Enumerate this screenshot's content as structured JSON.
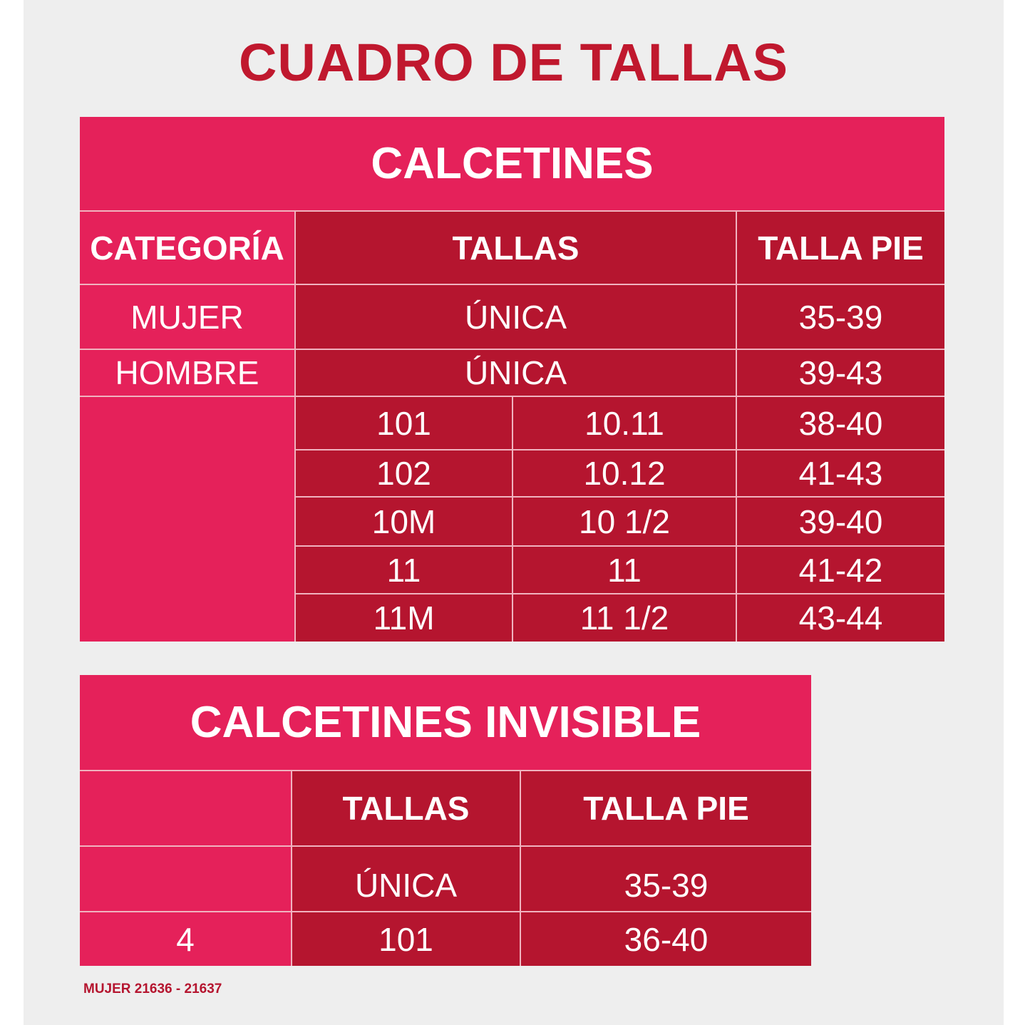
{
  "title": "CUADRO DE TALLAS",
  "colors": {
    "background": "#eeeeee",
    "title": "#c0182e",
    "pink": "#e5215a",
    "dark_red": "#b5152f"
  },
  "table1": {
    "title": "CALCETINES",
    "headers": [
      "CATEGORÍA",
      "TALLAS",
      "TALLA PIE"
    ],
    "rows": [
      {
        "categoria": "MUJER",
        "talla": "ÚNICA",
        "pie": "35-39"
      },
      {
        "categoria": "HOMBRE",
        "talla": "ÚNICA",
        "pie": "39-43"
      }
    ],
    "sub_rows": [
      {
        "a": "101",
        "b": "10.11",
        "pie": "38-40"
      },
      {
        "a": "102",
        "b": "10.12",
        "pie": "41-43"
      },
      {
        "a": "10M",
        "b": "10 1/2",
        "pie": "39-40"
      },
      {
        "a": "11",
        "b": "11",
        "pie": "41-42"
      },
      {
        "a": "11M",
        "b": "11 1/2",
        "pie": "43-44"
      }
    ]
  },
  "table2": {
    "title": "CALCETINES INVISIBLE",
    "headers": [
      "",
      "TALLAS",
      "TALLA PIE"
    ],
    "rows": [
      {
        "categoria": "",
        "talla": "ÚNICA",
        "pie": "35-39"
      },
      {
        "categoria": "4",
        "talla": "101",
        "pie": "36-40"
      }
    ]
  },
  "footer": "MUJER 21636 - 21637"
}
